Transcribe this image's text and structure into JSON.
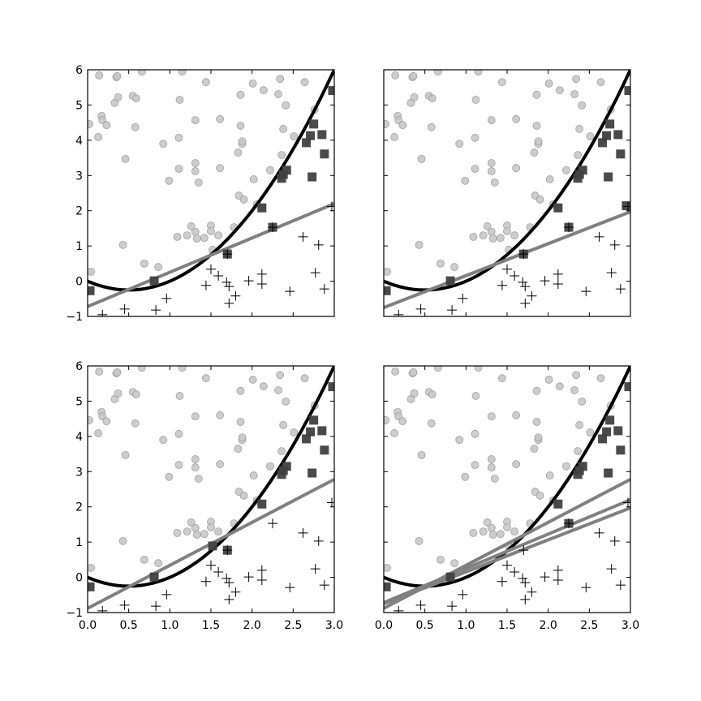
{
  "chart_data": [
    {
      "type": "scatter",
      "panel": "top-left",
      "xlim": [
        0,
        3
      ],
      "ylim": [
        -1,
        6
      ],
      "lines": [
        {
          "x": [
            0,
            3
          ],
          "y": [
            -0.72,
            2.2
          ],
          "color": "#808080"
        }
      ],
      "extra_squares": [
        [
          1.7,
          0.77
        ],
        [
          2.25,
          1.53
        ]
      ]
    },
    {
      "type": "scatter",
      "panel": "top-right",
      "xlim": [
        0,
        3
      ],
      "ylim": [
        -1,
        6
      ],
      "lines": [
        {
          "x": [
            0,
            3
          ],
          "y": [
            -0.75,
            1.97
          ],
          "color": "#808080"
        }
      ],
      "extra_squares": [
        [
          1.7,
          0.77
        ],
        [
          2.25,
          1.53
        ],
        [
          2.95,
          2.14
        ]
      ]
    },
    {
      "type": "scatter",
      "panel": "bottom-left",
      "xlim": [
        0,
        3
      ],
      "ylim": [
        -1,
        6
      ],
      "lines": [
        {
          "x": [
            0,
            3
          ],
          "y": [
            -0.88,
            2.78
          ],
          "color": "#808080"
        }
      ],
      "extra_squares": [
        [
          1.7,
          0.77
        ],
        [
          1.52,
          0.89
        ]
      ]
    },
    {
      "type": "scatter",
      "panel": "bottom-right",
      "xlim": [
        0,
        3
      ],
      "ylim": [
        -1,
        6
      ],
      "lines": [
        {
          "x": [
            0,
            3
          ],
          "y": [
            -0.72,
            2.2
          ],
          "color": "#808080"
        },
        {
          "x": [
            0,
            3
          ],
          "y": [
            -0.75,
            1.97
          ],
          "color": "#808080"
        },
        {
          "x": [
            0,
            3
          ],
          "y": [
            -0.88,
            2.78
          ],
          "color": "#808080"
        }
      ],
      "extra_squares": [
        [
          2.25,
          1.53
        ]
      ]
    }
  ],
  "shared": {
    "curve": {
      "formula": "y = x^2 - x",
      "color": "#000000"
    },
    "xticks": [
      "0.0",
      "0.5",
      "1.0",
      "1.5",
      "2.0",
      "2.5",
      "3.0"
    ],
    "yticks": [
      "−1",
      "0",
      "1",
      "2",
      "3",
      "4",
      "5",
      "6"
    ],
    "circle_color": "#c8c8c8",
    "square_color": "#404040",
    "circles": [
      [
        0.14,
        5.84
      ],
      [
        0.35,
        5.79
      ],
      [
        0.36,
        5.82
      ],
      [
        0.66,
        5.95
      ],
      [
        1.15,
        5.95
      ],
      [
        0.02,
        4.46
      ],
      [
        0.13,
        4.09
      ],
      [
        0.17,
        4.69
      ],
      [
        0.18,
        4.57
      ],
      [
        0.23,
        4.43
      ],
      [
        0.33,
        5.06
      ],
      [
        0.37,
        5.22
      ],
      [
        0.55,
        5.26
      ],
      [
        0.59,
        5.19
      ],
      [
        0.58,
        4.37
      ],
      [
        0.46,
        3.47
      ],
      [
        0.92,
        3.9
      ],
      [
        1.11,
        4.07
      ],
      [
        1.12,
        5.15
      ],
      [
        1.31,
        4.57
      ],
      [
        1.44,
        5.65
      ],
      [
        1.61,
        4.6
      ],
      [
        1.31,
        3.35
      ],
      [
        1.31,
        3.12
      ],
      [
        1.11,
        3.19
      ],
      [
        1.35,
        2.8
      ],
      [
        0.99,
        2.85
      ],
      [
        1.61,
        3.21
      ],
      [
        1.86,
        5.29
      ],
      [
        2.01,
        5.61
      ],
      [
        2.14,
        5.42
      ],
      [
        2.34,
        5.74
      ],
      [
        2.32,
        5.31
      ],
      [
        2.41,
        4.99
      ],
      [
        2.64,
        5.65
      ],
      [
        2.51,
        4.11
      ],
      [
        2.38,
        4.32
      ],
      [
        1.86,
        4.41
      ],
      [
        1.88,
        3.9
      ],
      [
        1.88,
        3.97
      ],
      [
        1.83,
        3.65
      ],
      [
        2.36,
        3.58
      ],
      [
        2.02,
        2.89
      ],
      [
        2.22,
        3.15
      ],
      [
        1.84,
        2.43
      ],
      [
        1.9,
        2.32
      ],
      [
        2.06,
        2.18
      ],
      [
        2.76,
        4.87
      ],
      [
        1.26,
        1.56
      ],
      [
        1.5,
        1.58
      ],
      [
        1.78,
        1.53
      ],
      [
        1.31,
        1.4
      ],
      [
        1.21,
        1.3
      ],
      [
        1.33,
        1.21
      ],
      [
        1.42,
        1.23
      ],
      [
        1.5,
        1.42
      ],
      [
        1.59,
        1.3
      ],
      [
        1.09,
        1.26
      ],
      [
        0.43,
        1.03
      ],
      [
        0.69,
        0.5
      ],
      [
        0.86,
        0.4
      ],
      [
        1.52,
        0.89
      ],
      [
        0.04,
        0.27
      ]
    ],
    "pluses": [
      [
        0.18,
        -0.95
      ],
      [
        0.45,
        -0.79
      ],
      [
        0.83,
        -0.82
      ],
      [
        0.96,
        -0.49
      ],
      [
        1.44,
        -0.12
      ],
      [
        1.5,
        0.34
      ],
      [
        1.59,
        0.15
      ],
      [
        1.69,
        -0.03
      ],
      [
        1.72,
        -0.15
      ],
      [
        1.72,
        -0.63
      ],
      [
        1.8,
        -0.42
      ],
      [
        1.96,
        0.01
      ],
      [
        2.12,
        0.2
      ],
      [
        2.12,
        -0.08
      ],
      [
        2.46,
        -0.29
      ],
      [
        2.62,
        1.26
      ],
      [
        2.81,
        1.03
      ],
      [
        2.77,
        0.24
      ],
      [
        2.88,
        -0.22
      ],
      [
        2.97,
        2.12
      ],
      [
        2.25,
        1.53
      ],
      [
        1.7,
        0.77
      ]
    ],
    "squares": [
      [
        0.03,
        -0.27
      ],
      [
        0.81,
        0.01
      ],
      [
        2.12,
        2.08
      ],
      [
        2.36,
        2.92
      ],
      [
        2.38,
        3.03
      ],
      [
        2.42,
        3.15
      ],
      [
        2.66,
        3.93
      ],
      [
        2.71,
        4.13
      ],
      [
        2.75,
        4.46
      ],
      [
        2.85,
        4.16
      ],
      [
        2.88,
        3.61
      ],
      [
        2.73,
        2.96
      ],
      [
        2.98,
        5.41
      ]
    ]
  }
}
